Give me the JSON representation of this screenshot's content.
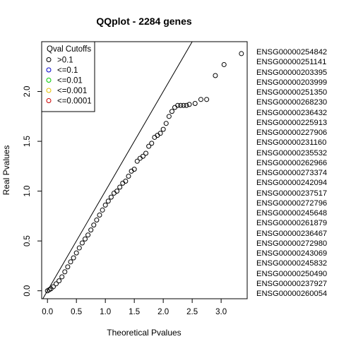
{
  "chart_data": {
    "type": "scatter",
    "title": "QQplot - 2284 genes",
    "xlabel": "Theoretical Pvalues",
    "ylabel": "Real Pvalues",
    "xlim": [
      -0.1,
      3.45
    ],
    "ylim": [
      -0.08,
      2.5
    ],
    "x_ticks": [
      0.0,
      0.5,
      1.0,
      1.5,
      2.0,
      2.5,
      3.0
    ],
    "x_tick_labels": [
      "0.0",
      "0.5",
      "1.0",
      "1.5",
      "2.0",
      "2.5",
      "3.0"
    ],
    "y_ticks": [
      0.0,
      0.5,
      1.0,
      1.5,
      2.0
    ],
    "y_tick_labels": [
      "0.0",
      "0.5",
      "1.0",
      "1.5",
      "2.0"
    ],
    "reference_line": "y = x",
    "marker": "o",
    "grid": false,
    "legend": {
      "title": "Qval Cutoffs",
      "placement": "top-left",
      "entries": [
        {
          "label": ">0.1",
          "color": "#000000"
        },
        {
          "label": "<=0.1",
          "color": "#0000cc"
        },
        {
          "label": "<=0.01",
          "color": "#00cc00"
        },
        {
          "label": "<=0.001",
          "color": "#e6c000"
        },
        {
          "label": "<=0.0001",
          "color": "#cc0000"
        }
      ]
    },
    "points": [
      {
        "x": 0.0,
        "y": 0.0
      },
      {
        "x": 0.03,
        "y": 0.01
      },
      {
        "x": 0.06,
        "y": 0.02
      },
      {
        "x": 0.1,
        "y": 0.04
      },
      {
        "x": 0.15,
        "y": 0.07
      },
      {
        "x": 0.2,
        "y": 0.1
      },
      {
        "x": 0.25,
        "y": 0.14
      },
      {
        "x": 0.3,
        "y": 0.19
      },
      {
        "x": 0.35,
        "y": 0.24
      },
      {
        "x": 0.4,
        "y": 0.29
      },
      {
        "x": 0.45,
        "y": 0.33
      },
      {
        "x": 0.5,
        "y": 0.38
      },
      {
        "x": 0.55,
        "y": 0.43
      },
      {
        "x": 0.6,
        "y": 0.48
      },
      {
        "x": 0.65,
        "y": 0.52
      },
      {
        "x": 0.7,
        "y": 0.56
      },
      {
        "x": 0.75,
        "y": 0.61
      },
      {
        "x": 0.8,
        "y": 0.66
      },
      {
        "x": 0.85,
        "y": 0.71
      },
      {
        "x": 0.9,
        "y": 0.76
      },
      {
        "x": 0.95,
        "y": 0.81
      },
      {
        "x": 1.0,
        "y": 0.86
      },
      {
        "x": 1.05,
        "y": 0.9
      },
      {
        "x": 1.1,
        "y": 0.94
      },
      {
        "x": 1.15,
        "y": 0.98
      },
      {
        "x": 1.2,
        "y": 1.0
      },
      {
        "x": 1.25,
        "y": 1.04
      },
      {
        "x": 1.3,
        "y": 1.08
      },
      {
        "x": 1.35,
        "y": 1.1
      },
      {
        "x": 1.4,
        "y": 1.15
      },
      {
        "x": 1.45,
        "y": 1.2
      },
      {
        "x": 1.5,
        "y": 1.22
      },
      {
        "x": 1.55,
        "y": 1.3
      },
      {
        "x": 1.6,
        "y": 1.33
      },
      {
        "x": 1.65,
        "y": 1.35
      },
      {
        "x": 1.7,
        "y": 1.38
      },
      {
        "x": 1.75,
        "y": 1.45
      },
      {
        "x": 1.8,
        "y": 1.48
      },
      {
        "x": 1.85,
        "y": 1.54
      },
      {
        "x": 1.9,
        "y": 1.56
      },
      {
        "x": 1.95,
        "y": 1.58
      },
      {
        "x": 2.0,
        "y": 1.62
      },
      {
        "x": 2.05,
        "y": 1.68
      },
      {
        "x": 2.1,
        "y": 1.75
      },
      {
        "x": 2.15,
        "y": 1.8
      },
      {
        "x": 2.2,
        "y": 1.84
      },
      {
        "x": 2.25,
        "y": 1.86
      },
      {
        "x": 2.3,
        "y": 1.86
      },
      {
        "x": 2.35,
        "y": 1.86
      },
      {
        "x": 2.4,
        "y": 1.86
      },
      {
        "x": 2.45,
        "y": 1.87
      },
      {
        "x": 2.55,
        "y": 1.88
      },
      {
        "x": 2.65,
        "y": 1.92
      },
      {
        "x": 2.75,
        "y": 1.92
      },
      {
        "x": 2.9,
        "y": 2.16
      },
      {
        "x": 3.05,
        "y": 2.27
      },
      {
        "x": 3.35,
        "y": 2.38
      }
    ],
    "gene_list": [
      "ENSG00000254842",
      "ENSG00000251141",
      "ENSG00000203395",
      "ENSG00000203999",
      "ENSG00000251350",
      "ENSG00000268230",
      "ENSG00000236432",
      "ENSG00000225913",
      "ENSG00000227906",
      "ENSG00000231160",
      "ENSG00000235532",
      "ENSG00000262966",
      "ENSG00000273374",
      "ENSG00000242094",
      "ENSG00000237517",
      "ENSG00000272796",
      "ENSG00000245648",
      "ENSG00000261879",
      "ENSG00000236467",
      "ENSG00000272980",
      "ENSG00000243069",
      "ENSG00000245832",
      "ENSG00000250490",
      "ENSG00000237927",
      "ENSG00000260054"
    ]
  }
}
